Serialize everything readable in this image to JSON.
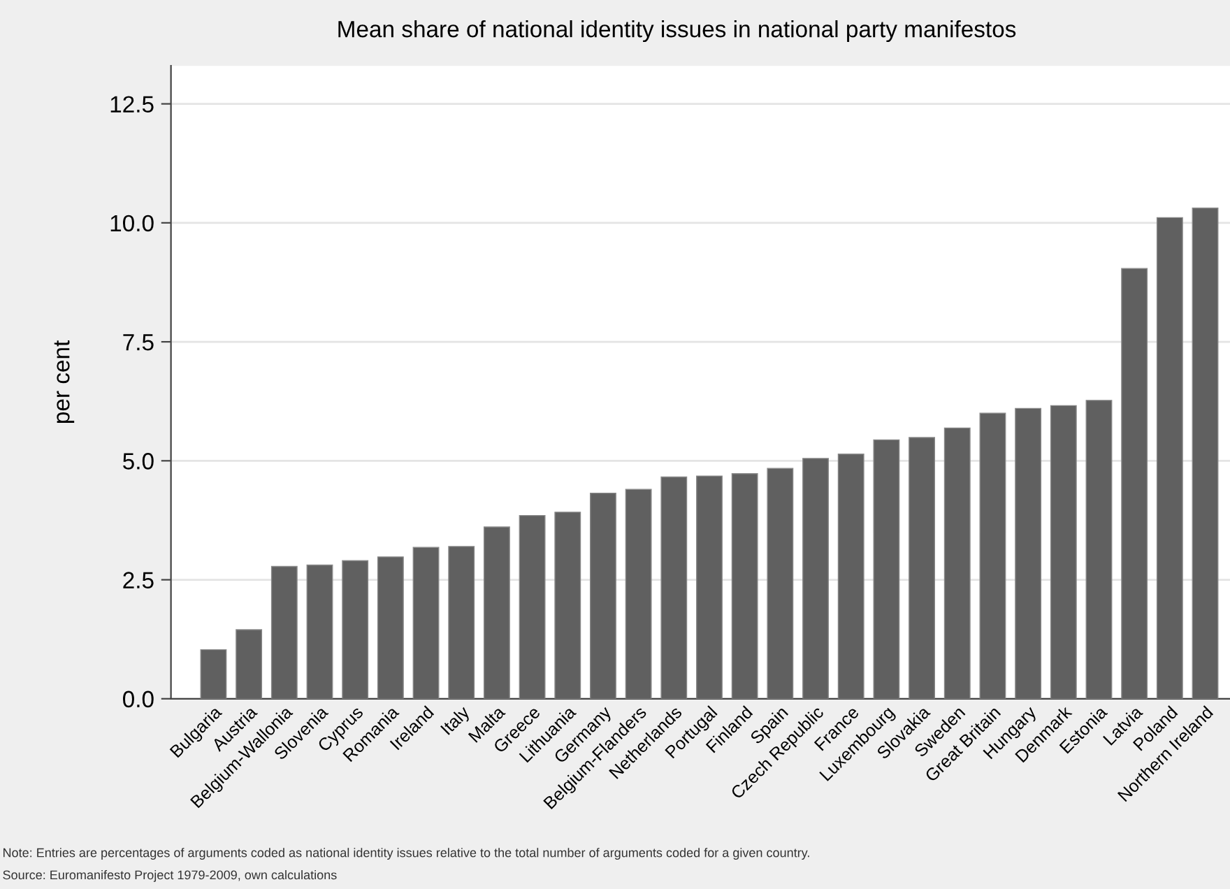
{
  "chart_data": {
    "type": "bar",
    "title": "Mean share of national identity issues in national party manifestos",
    "ylabel": "per cent",
    "categories": [
      "Bulgaria",
      "Austria",
      "Belgium-Wallonia",
      "Slovenia",
      "Cyprus",
      "Romania",
      "Ireland",
      "Italy",
      "Malta",
      "Greece",
      "Lithuania",
      "Germany",
      "Belgium-Flanders",
      "Netherlands",
      "Portugal",
      "Finland",
      "Spain",
      "Czech Republic",
      "France",
      "Luxembourg",
      "Slovakia",
      "Sweden",
      "Great Britain",
      "Hungary",
      "Denmark",
      "Estonia",
      "Latvia",
      "Poland",
      "Northern Ireland"
    ],
    "values": [
      1.03,
      1.45,
      2.78,
      2.81,
      2.9,
      2.98,
      3.18,
      3.2,
      3.61,
      3.85,
      3.92,
      4.32,
      4.4,
      4.66,
      4.68,
      4.73,
      4.84,
      5.05,
      5.14,
      5.44,
      5.49,
      5.69,
      6.0,
      6.1,
      6.16,
      6.27,
      9.04,
      10.11,
      10.31
    ],
    "color": "#606060",
    "ylim": [
      0,
      13.3
    ],
    "yticks": [
      {
        "value": 0,
        "label": "0.0"
      },
      {
        "value": 2.5,
        "label": "2.5"
      },
      {
        "value": 5,
        "label": "5.0"
      },
      {
        "value": 7.5,
        "label": "7.5"
      },
      {
        "value": 10,
        "label": "10.0"
      },
      {
        "value": 12.5,
        "label": "12.5"
      }
    ],
    "grid": "y",
    "annotations": [
      "Note: Entries are percentages of arguments coded as national identity issues relative to the total number of arguments coded for a given country.",
      "Source: Euromanifesto Project 1979-2009, own calculations"
    ]
  }
}
